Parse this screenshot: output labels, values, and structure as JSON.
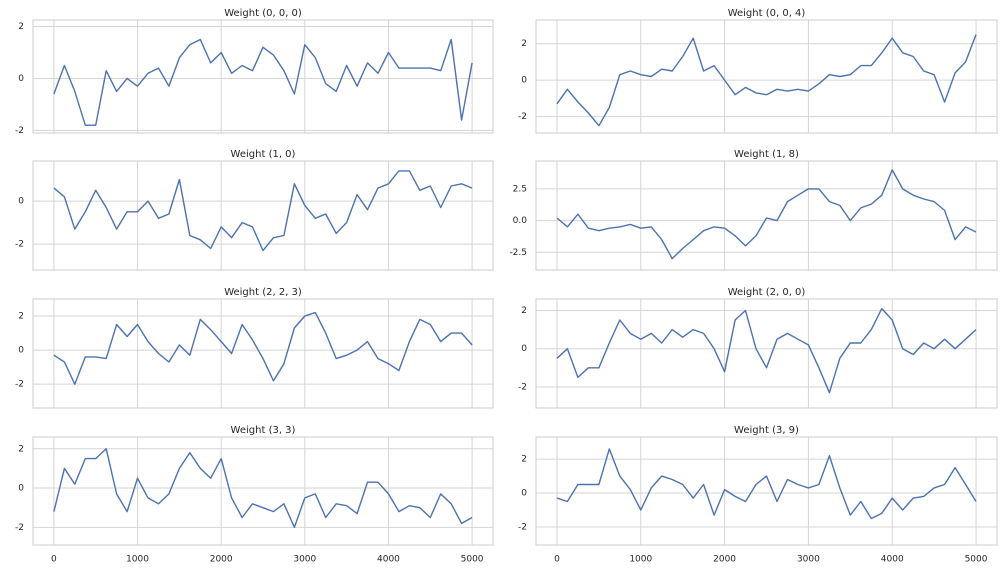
{
  "chart_data": [
    {
      "type": "line",
      "title": "Weight (0, 0, 0)",
      "color": "#4c72b0",
      "grid": true,
      "x": [
        0,
        125,
        250,
        375,
        500,
        625,
        750,
        875,
        1000,
        1125,
        1250,
        1375,
        1500,
        1625,
        1750,
        1875,
        2000,
        2125,
        2250,
        2375,
        2500,
        2625,
        2750,
        2875,
        3000,
        3125,
        3250,
        3375,
        3500,
        3625,
        3750,
        3875,
        4000,
        4125,
        4250,
        4375,
        4500,
        4625,
        4750,
        4875,
        5000
      ],
      "values": [
        -0.6,
        0.5,
        -0.5,
        -1.8,
        -1.8,
        0.3,
        -0.5,
        0,
        -0.3,
        0.2,
        0.4,
        -0.3,
        0.8,
        1.3,
        1.5,
        0.6,
        1.0,
        0.2,
        0.5,
        0.3,
        1.2,
        0.9,
        0.3,
        -0.6,
        1.3,
        0.8,
        -0.2,
        -0.5,
        0.5,
        -0.3,
        0.6,
        0.2,
        1.0,
        0.4,
        0.4,
        0.4,
        0.4,
        0.3,
        1.5,
        -1.6,
        0.6
      ],
      "xlim": [
        -250,
        5250
      ],
      "xticks": [
        0,
        1000,
        2000,
        3000,
        4000,
        5000
      ],
      "ylim": [
        -2.1,
        2.25
      ],
      "yticks": [
        -2,
        0,
        2
      ]
    },
    {
      "type": "line",
      "title": "Weight (0, 0, 4)",
      "color": "#4c72b0",
      "grid": true,
      "x": [
        0,
        125,
        250,
        375,
        500,
        625,
        750,
        875,
        1000,
        1125,
        1250,
        1375,
        1500,
        1625,
        1750,
        1875,
        2000,
        2125,
        2250,
        2375,
        2500,
        2625,
        2750,
        2875,
        3000,
        3125,
        3250,
        3375,
        3500,
        3625,
        3750,
        3875,
        4000,
        4125,
        4250,
        4375,
        4500,
        4625,
        4750,
        4875,
        5000
      ],
      "values": [
        -1.3,
        -0.5,
        -1.2,
        -1.8,
        -2.5,
        -1.5,
        0.3,
        0.5,
        0.3,
        0.2,
        0.6,
        0.5,
        1.3,
        2.3,
        0.5,
        0.8,
        0,
        -0.8,
        -0.4,
        -0.7,
        -0.8,
        -0.5,
        -0.6,
        -0.5,
        -0.6,
        -0.2,
        0.3,
        0.2,
        0.3,
        0.8,
        0.8,
        1.5,
        2.3,
        1.5,
        1.3,
        0.5,
        0.3,
        -1.2,
        0.4,
        1.0,
        2.5
      ],
      "xlim": [
        -250,
        5250
      ],
      "xticks": [
        0,
        1000,
        2000,
        3000,
        4000,
        5000
      ],
      "ylim": [
        -2.9,
        3.3
      ],
      "yticks": [
        -2,
        0,
        2
      ]
    },
    {
      "type": "line",
      "title": "Weight (1, 0)",
      "color": "#4c72b0",
      "grid": true,
      "x": [
        0,
        125,
        250,
        375,
        500,
        625,
        750,
        875,
        1000,
        1125,
        1250,
        1375,
        1500,
        1625,
        1750,
        1875,
        2000,
        2125,
        2250,
        2375,
        2500,
        2625,
        2750,
        2875,
        3000,
        3125,
        3250,
        3375,
        3500,
        3625,
        3750,
        3875,
        4000,
        4125,
        4250,
        4375,
        4500,
        4625,
        4750,
        4875,
        5000
      ],
      "values": [
        0.6,
        0.2,
        -1.3,
        -0.5,
        0.5,
        -0.3,
        -1.3,
        -0.5,
        -0.5,
        0,
        -0.8,
        -0.6,
        1.0,
        -1.6,
        -1.8,
        -2.2,
        -1.2,
        -1.7,
        -1.0,
        -1.2,
        -2.3,
        -1.7,
        -1.6,
        0.8,
        -0.2,
        -0.8,
        -0.6,
        -1.5,
        -1.0,
        0.3,
        -0.4,
        0.6,
        0.8,
        1.4,
        1.4,
        0.5,
        0.7,
        -0.3,
        0.7,
        0.8,
        0.6
      ],
      "xlim": [
        -250,
        5250
      ],
      "xticks": [
        0,
        1000,
        2000,
        3000,
        4000,
        5000
      ],
      "ylim": [
        -3.2,
        1.86
      ],
      "yticks": [
        -2,
        0
      ]
    },
    {
      "type": "line",
      "title": "Weight (1, 8)",
      "color": "#4c72b0",
      "grid": true,
      "x": [
        0,
        125,
        250,
        375,
        500,
        625,
        750,
        875,
        1000,
        1125,
        1250,
        1375,
        1500,
        1625,
        1750,
        1875,
        2000,
        2125,
        2250,
        2375,
        2500,
        2625,
        2750,
        2875,
        3000,
        3125,
        3250,
        3375,
        3500,
        3625,
        3750,
        3875,
        4000,
        4125,
        4250,
        4375,
        4500,
        4625,
        4750,
        4875,
        5000
      ],
      "values": [
        0.2,
        -0.5,
        0.5,
        -0.6,
        -0.8,
        -0.6,
        -0.5,
        -0.3,
        -0.6,
        -0.5,
        -1.5,
        -3.0,
        -2.2,
        -1.5,
        -0.8,
        -0.5,
        -0.6,
        -1.2,
        -2.0,
        -1.2,
        0.2,
        0,
        1.5,
        2.0,
        2.5,
        2.5,
        1.5,
        1.2,
        0,
        1.0,
        1.3,
        2.0,
        4.0,
        2.5,
        2.0,
        1.7,
        1.5,
        0.8,
        -1.5,
        -0.5,
        -0.9
      ],
      "xlim": [
        -250,
        5250
      ],
      "xticks": [
        0,
        1000,
        2000,
        3000,
        4000,
        5000
      ],
      "ylim": [
        -3.9,
        4.7
      ],
      "yticks": [
        {
          "value": -2.5,
          "label": "-2.5"
        },
        {
          "value": 0,
          "label": "0.0"
        },
        2.5
      ]
    },
    {
      "type": "line",
      "title": "Weight (2, 2, 3)",
      "color": "#4c72b0",
      "grid": true,
      "x": [
        0,
        125,
        250,
        375,
        500,
        625,
        750,
        875,
        1000,
        1125,
        1250,
        1375,
        1500,
        1625,
        1750,
        1875,
        2000,
        2125,
        2250,
        2375,
        2500,
        2625,
        2750,
        2875,
        3000,
        3125,
        3250,
        3375,
        3500,
        3625,
        3750,
        3875,
        4000,
        4125,
        4250,
        4375,
        4500,
        4625,
        4750,
        4875,
        5000
      ],
      "values": [
        -0.3,
        -0.7,
        -2.0,
        -0.4,
        -0.4,
        -0.5,
        1.5,
        0.8,
        1.5,
        0.5,
        -0.2,
        -0.7,
        0.3,
        -0.3,
        1.8,
        1.2,
        0.5,
        -0.2,
        1.5,
        0.6,
        -0.5,
        -1.8,
        -0.8,
        1.3,
        2.0,
        2.2,
        1.0,
        -0.5,
        -0.3,
        0,
        0.5,
        -0.5,
        -0.8,
        -1.2,
        0.5,
        1.8,
        1.5,
        0.5,
        1.0,
        1.0,
        0.3
      ],
      "xlim": [
        -250,
        5250
      ],
      "xticks": [
        0,
        1000,
        2000,
        3000,
        4000,
        5000
      ],
      "ylim": [
        -3.4,
        3.0
      ],
      "yticks": [
        -2,
        0,
        2
      ]
    },
    {
      "type": "line",
      "title": "Weight (2, 0, 0)",
      "color": "#4c72b0",
      "grid": true,
      "x": [
        0,
        125,
        250,
        375,
        500,
        625,
        750,
        875,
        1000,
        1125,
        1250,
        1375,
        1500,
        1625,
        1750,
        1875,
        2000,
        2125,
        2250,
        2375,
        2500,
        2625,
        2750,
        2875,
        3000,
        3125,
        3250,
        3375,
        3500,
        3625,
        3750,
        3875,
        4000,
        4125,
        4250,
        4375,
        4500,
        4625,
        4750,
        4875,
        5000
      ],
      "values": [
        -0.5,
        0,
        -1.5,
        -1.0,
        -1.0,
        0.3,
        1.5,
        0.8,
        0.5,
        0.8,
        0.3,
        1.0,
        0.6,
        1.0,
        0.8,
        0,
        -1.2,
        1.5,
        2.0,
        0,
        -1.0,
        0.5,
        0.8,
        0.5,
        0.2,
        -1.0,
        -2.3,
        -0.5,
        0.3,
        0.3,
        1.0,
        2.1,
        1.5,
        0,
        -0.3,
        0.3,
        0,
        0.5,
        0,
        0.5,
        1.0
      ],
      "xlim": [
        -250,
        5250
      ],
      "xticks": [
        0,
        1000,
        2000,
        3000,
        4000,
        5000
      ],
      "ylim": [
        -3.1,
        2.6
      ],
      "yticks": [
        -2,
        0,
        2
      ]
    },
    {
      "type": "line",
      "title": "Weight (3, 3)",
      "color": "#4c72b0",
      "grid": true,
      "x": [
        0,
        125,
        250,
        375,
        500,
        625,
        750,
        875,
        1000,
        1125,
        1250,
        1375,
        1500,
        1625,
        1750,
        1875,
        2000,
        2125,
        2250,
        2375,
        2500,
        2625,
        2750,
        2875,
        3000,
        3125,
        3250,
        3375,
        3500,
        3625,
        3750,
        3875,
        4000,
        4125,
        4250,
        4375,
        4500,
        4625,
        4750,
        4875,
        5000
      ],
      "values": [
        -1.2,
        1.0,
        0.2,
        1.5,
        1.5,
        2.0,
        -0.3,
        -1.2,
        0.5,
        -0.5,
        -0.8,
        -0.3,
        1.0,
        1.8,
        1.0,
        0.5,
        1.5,
        -0.5,
        -1.5,
        -0.8,
        -1.0,
        -1.2,
        -0.8,
        -2.0,
        -0.5,
        -0.3,
        -1.5,
        -0.8,
        -0.9,
        -1.3,
        0.3,
        0.3,
        -0.3,
        -1.2,
        -0.9,
        -1.0,
        -1.5,
        -0.3,
        -0.8,
        -1.8,
        -1.5
      ],
      "xlim": [
        -250,
        5250
      ],
      "xticks": [
        0,
        1000,
        2000,
        3000,
        4000,
        5000
      ],
      "ylim": [
        -2.9,
        2.6
      ],
      "yticks": [
        -2,
        0,
        2
      ]
    },
    {
      "type": "line",
      "title": "Weight (3, 9)",
      "color": "#4c72b0",
      "grid": true,
      "x": [
        0,
        125,
        250,
        375,
        500,
        625,
        750,
        875,
        1000,
        1125,
        1250,
        1375,
        1500,
        1625,
        1750,
        1875,
        2000,
        2125,
        2250,
        2375,
        2500,
        2625,
        2750,
        2875,
        3000,
        3125,
        3250,
        3375,
        3500,
        3625,
        3750,
        3875,
        4000,
        4125,
        4250,
        4375,
        4500,
        4625,
        4750,
        4875,
        5000
      ],
      "values": [
        -0.3,
        -0.5,
        0.5,
        0.5,
        0.5,
        2.6,
        1.0,
        0.2,
        -1.0,
        0.3,
        1.0,
        0.8,
        0.5,
        -0.3,
        0.5,
        -1.3,
        0.2,
        -0.2,
        -0.5,
        0.5,
        1.0,
        -0.5,
        0.8,
        0.5,
        0.3,
        0.5,
        2.2,
        0.3,
        -1.3,
        -0.5,
        -1.5,
        -1.2,
        -0.3,
        -1.0,
        -0.3,
        -0.2,
        0.3,
        0.5,
        1.5,
        0.5,
        -0.5
      ],
      "xlim": [
        -250,
        5250
      ],
      "xticks": [
        0,
        1000,
        2000,
        3000,
        4000,
        5000
      ],
      "ylim": [
        -3.06,
        3.3
      ],
      "yticks": [
        -2,
        0,
        2
      ]
    }
  ]
}
